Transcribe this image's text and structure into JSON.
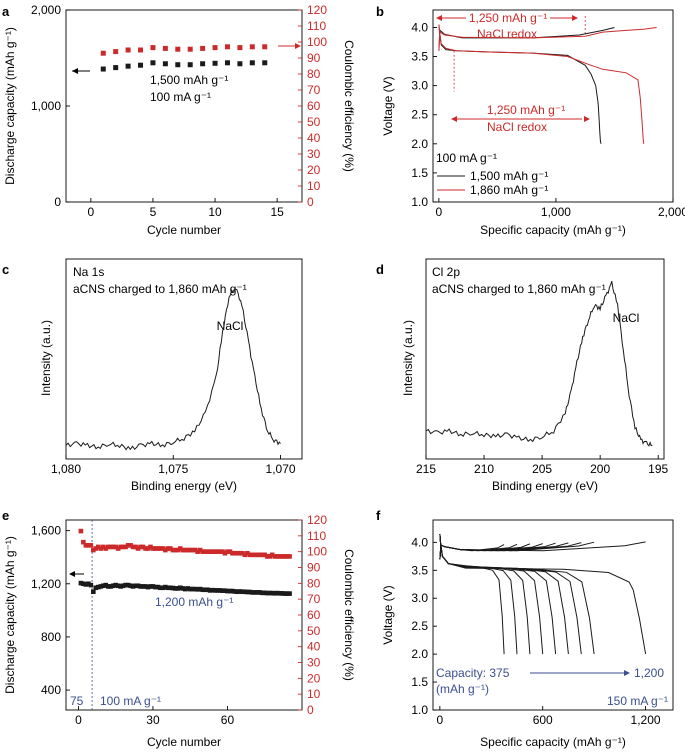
{
  "colors": {
    "black": "#1a1a1a",
    "red": "#cc2a2a",
    "blue": "#3a4f8f",
    "guide": "#cc2a2a"
  },
  "panels": {
    "a": {
      "letter": "a",
      "xlabel": "Cycle number",
      "ylabel": "Discharge capacity (mAh g⁻¹)",
      "y2label": "Coulombic efficiency (%)",
      "note1": "1,500 mAh g⁻¹",
      "note2": "100 mA g⁻¹"
    },
    "b": {
      "letter": "b",
      "xlabel": "Specific capacity (mAh g⁻¹)",
      "ylabel": "Voltage (V)",
      "top_cap": "1,250 mAh g⁻¹",
      "top_redox": "NaCl redox",
      "mid_cap": "1,250 mAh g⁻¹",
      "mid_redox": "NaCl redox",
      "legend_title": "100 mA g⁻¹",
      "legend1": "1,500 mAh g⁻¹",
      "legend2": "1,860 mAh g⁻¹"
    },
    "c": {
      "letter": "c",
      "xlabel": "Binding energy (eV)",
      "ylabel": "Intensity (a.u.)",
      "line1": "Na 1s",
      "line2": "aCNS charged to 1,860 mAh g⁻¹",
      "peak": "NaCl"
    },
    "d": {
      "letter": "d",
      "xlabel": "Binding energy (eV)",
      "ylabel": "Intensity (a.u.)",
      "line1": "Cl 2p",
      "line2": "aCNS charged to 1,860 mAh g⁻¹",
      "peak": "NaCl"
    },
    "e": {
      "letter": "e",
      "xlabel": "Cycle number",
      "ylabel": "Discharge capacity (mAh g⁻¹)",
      "y2label": "Coulombic efficiency (%)",
      "note1": "1,200 mAh g⁻¹",
      "note_left": "75",
      "note_rate": "100 mA g⁻¹"
    },
    "f": {
      "letter": "f",
      "xlabel": "Specific capacity (mAh g⁻¹)",
      "ylabel": "Voltage (V)",
      "cap_label": "Capacity: 375",
      "cap_unit": "(mAh g⁻¹)",
      "cap_end": "1,200",
      "rate": "150 mA g⁻¹"
    }
  },
  "chart_data": [
    {
      "id": "a",
      "type": "scatter",
      "x": [
        1,
        2,
        3,
        4,
        5,
        6,
        7,
        8,
        9,
        10,
        11,
        12,
        13,
        14
      ],
      "series": [
        {
          "name": "Discharge capacity",
          "axis": "left",
          "values": [
            1385,
            1400,
            1415,
            1425,
            1450,
            1440,
            1430,
            1430,
            1440,
            1445,
            1450,
            1440,
            1450,
            1450
          ]
        },
        {
          "name": "Coulombic efficiency",
          "axis": "right",
          "values": [
            93,
            94,
            95,
            95,
            96.5,
            96,
            95.5,
            95.5,
            96,
            96.5,
            97,
            96.5,
            97,
            97
          ]
        }
      ],
      "xlim": [
        -2,
        17
      ],
      "xticks": [
        0,
        5,
        10,
        15
      ],
      "ylim": [
        0,
        2000
      ],
      "yticks": [
        0,
        1000,
        2000
      ],
      "ytick_labels": [
        "0",
        "1,000",
        "2,000"
      ],
      "y2lim": [
        0,
        120
      ],
      "y2ticks": [
        0,
        10,
        20,
        30,
        40,
        50,
        60,
        70,
        80,
        90,
        100,
        110,
        120
      ]
    },
    {
      "id": "b",
      "type": "line",
      "xlim": [
        -50,
        2000
      ],
      "xticks": [
        0,
        1000,
        2000
      ],
      "xtick_labels": [
        "0",
        "1,000",
        "2,000"
      ],
      "ylim": [
        1.0,
        4.3
      ],
      "yticks": [
        1.0,
        1.5,
        2.0,
        2.5,
        3.0,
        3.5,
        4.0
      ],
      "ytick_labels": [
        "1.0",
        "1.5",
        "2.0",
        "2.5",
        "3.0",
        "3.5",
        "4.0"
      ],
      "series": [
        {
          "name": "1,500 mAh g⁻¹ discharge",
          "color": "black",
          "x": [
            0,
            5,
            20,
            60,
            150,
            400,
            800,
            1100,
            1250,
            1300,
            1340,
            1360,
            1370,
            1375,
            1380,
            1385
          ],
          "y": [
            4.05,
            3.95,
            3.7,
            3.62,
            3.6,
            3.58,
            3.56,
            3.52,
            3.35,
            3.2,
            3.0,
            2.7,
            2.4,
            2.2,
            2.05,
            2.0
          ]
        },
        {
          "name": "1,500 mAh g⁻¹ charge",
          "color": "black",
          "x": [
            0,
            5,
            10,
            50,
            200,
            800,
            1200,
            1400,
            1500
          ],
          "y": [
            3.6,
            3.8,
            3.95,
            3.88,
            3.82,
            3.82,
            3.87,
            3.95,
            4.0
          ]
        },
        {
          "name": "1,860 mAh g⁻¹ discharge",
          "color": "red",
          "x": [
            0,
            5,
            20,
            60,
            150,
            400,
            800,
            1100,
            1300,
            1400,
            1600,
            1700,
            1720,
            1735,
            1745,
            1750
          ],
          "y": [
            4.05,
            3.95,
            3.72,
            3.64,
            3.6,
            3.58,
            3.56,
            3.5,
            3.35,
            3.28,
            3.22,
            3.1,
            2.8,
            2.4,
            2.1,
            2.0
          ]
        },
        {
          "name": "1,860 mAh g⁻¹ charge",
          "color": "red",
          "x": [
            0,
            5,
            10,
            50,
            200,
            800,
            1250,
            1400,
            1600,
            1750,
            1860
          ],
          "y": [
            3.6,
            3.8,
            3.92,
            3.87,
            3.83,
            3.82,
            3.85,
            3.92,
            3.95,
            3.97,
            4.0
          ]
        }
      ]
    },
    {
      "id": "c",
      "type": "line",
      "xlim": [
        1080,
        1069
      ],
      "xticks": [
        1080,
        1075,
        1070
      ],
      "xtick_labels": [
        "1,080",
        "1,075",
        "1,070"
      ],
      "x": [
        1080,
        1079.5,
        1079,
        1078.5,
        1078,
        1077.5,
        1077,
        1076.5,
        1076,
        1075.5,
        1075,
        1074.5,
        1074,
        1073.5,
        1073,
        1072.7,
        1072.4,
        1072.1,
        1071.8,
        1071.5,
        1071.2,
        1070.9,
        1070.6,
        1070.3,
        1070
      ],
      "y": [
        0.02,
        0.03,
        0.02,
        0.01,
        0.03,
        0.02,
        0.0,
        0.02,
        0.03,
        0.02,
        0.04,
        0.06,
        0.1,
        0.2,
        0.4,
        0.65,
        0.85,
        0.9,
        0.8,
        0.6,
        0.4,
        0.22,
        0.1,
        0.05,
        0.03
      ]
    },
    {
      "id": "d",
      "type": "line",
      "xlim": [
        215,
        194.5
      ],
      "xticks": [
        215,
        210,
        205,
        200,
        195
      ],
      "xtick_labels": [
        "215",
        "210",
        "205",
        "200",
        "195"
      ],
      "x": [
        215,
        214,
        213,
        212,
        211,
        210,
        209,
        208,
        207,
        206,
        205,
        204,
        203,
        202.5,
        202,
        201.5,
        201,
        200.5,
        200,
        199.5,
        199,
        198.5,
        198,
        197.5,
        197,
        196.5,
        196,
        195.5
      ],
      "y": [
        0.1,
        0.09,
        0.1,
        0.08,
        0.09,
        0.08,
        0.07,
        0.08,
        0.06,
        0.05,
        0.07,
        0.1,
        0.2,
        0.32,
        0.48,
        0.62,
        0.72,
        0.8,
        0.78,
        0.85,
        0.92,
        0.8,
        0.55,
        0.3,
        0.12,
        0.05,
        0.03,
        0.02
      ]
    },
    {
      "id": "e",
      "type": "scatter",
      "x": [
        1,
        2,
        3,
        4,
        5,
        6,
        7,
        8,
        9,
        10,
        11,
        12,
        13,
        14,
        15,
        16,
        17,
        18,
        19,
        20,
        21,
        22,
        23,
        24,
        25,
        26,
        27,
        28,
        29,
        30,
        31,
        32,
        33,
        34,
        35,
        36,
        37,
        38,
        39,
        40,
        41,
        42,
        43,
        44,
        45,
        46,
        47,
        48,
        49,
        50,
        51,
        52,
        53,
        54,
        55,
        56,
        57,
        58,
        59,
        60,
        61,
        62,
        63,
        64,
        65,
        66,
        67,
        68,
        69,
        70,
        71,
        72,
        73,
        74,
        75,
        76,
        77,
        78,
        79,
        80,
        81,
        82,
        83,
        84,
        85
      ],
      "series": [
        {
          "name": "Discharge capacity",
          "axis": "left",
          "values": [
            1205,
            1200,
            1195,
            1200,
            1190,
            1140,
            1170,
            1175,
            1180,
            1185,
            1190,
            1180,
            1180,
            1185,
            1190,
            1185,
            1180,
            1185,
            1190,
            1190,
            1185,
            1180,
            1185,
            1185,
            1180,
            1180,
            1180,
            1175,
            1180,
            1180,
            1175,
            1175,
            1170,
            1170,
            1175,
            1170,
            1170,
            1168,
            1165,
            1165,
            1170,
            1165,
            1160,
            1165,
            1160,
            1160,
            1160,
            1158,
            1160,
            1155,
            1155,
            1155,
            1150,
            1152,
            1150,
            1150,
            1150,
            1148,
            1148,
            1145,
            1145,
            1145,
            1142,
            1140,
            1142,
            1140,
            1140,
            1138,
            1138,
            1135,
            1135,
            1135,
            1135,
            1132,
            1132,
            1130,
            1130,
            1130,
            1128,
            1130,
            1128,
            1128,
            1126,
            1126,
            1126
          ]
        },
        {
          "name": "Coulombic efficiency",
          "axis": "right",
          "values": [
            113,
            106,
            104,
            104,
            104,
            101,
            102,
            103,
            102,
            103,
            102,
            103,
            103,
            103,
            103,
            102,
            103,
            103,
            103,
            104,
            104,
            103,
            103,
            102,
            103,
            103,
            102,
            102,
            103,
            102,
            102,
            102,
            102,
            102,
            101,
            102,
            102,
            101,
            101,
            101,
            102,
            101,
            101,
            101,
            101,
            101,
            101,
            100,
            101,
            100,
            100,
            100,
            100,
            100,
            100,
            100,
            100,
            100,
            99,
            100,
            100,
            99,
            99,
            99,
            99,
            99,
            98,
            99,
            98,
            98,
            98,
            98,
            98,
            98,
            98,
            97,
            97,
            98,
            97,
            97,
            97,
            97,
            97,
            97,
            97
          ]
        }
      ],
      "xlim": [
        -5,
        90
      ],
      "xticks": [
        0,
        30,
        60
      ],
      "ylim": [
        250,
        1680
      ],
      "yticks": [
        400,
        800,
        1200,
        1600
      ],
      "ytick_labels": [
        "400",
        "800",
        "1,200",
        "1,600"
      ],
      "y2lim": [
        0,
        120
      ],
      "y2ticks": [
        0,
        10,
        20,
        30,
        40,
        50,
        60,
        70,
        80,
        90,
        100,
        110,
        120
      ]
    },
    {
      "id": "f",
      "type": "line",
      "xlim": [
        -40,
        1360
      ],
      "xticks": [
        0,
        600,
        1200
      ],
      "xtick_labels": [
        "0",
        "600",
        "1,200"
      ],
      "ylim": [
        1.0,
        4.4
      ],
      "yticks": [
        1.0,
        1.5,
        2.0,
        2.5,
        3.0,
        3.5,
        4.0
      ],
      "ytick_labels": [
        "1.0",
        "1.5",
        "2.0",
        "2.5",
        "3.0",
        "3.5",
        "4.0"
      ],
      "capacities": [
        375,
        450,
        525,
        600,
        675,
        750,
        825,
        900,
        1200
      ]
    }
  ]
}
